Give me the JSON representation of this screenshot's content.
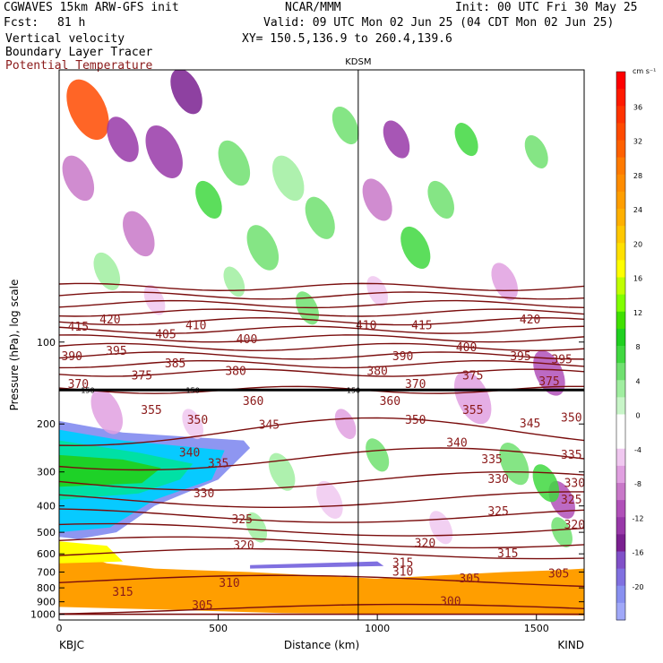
{
  "header": {
    "model": "CGWAVES 15km ARW-GFS init",
    "org": "NCAR/MMM",
    "init": "Init: 00 UTC Fri 30 May 25",
    "fcst_label": "Fcst:",
    "fcst_value": "81 h",
    "valid": "Valid: 09 UTC Mon 02 Jun 25 (04 CDT Mon 02 Jun 25)",
    "fields": [
      "Vertical velocity",
      "Boundary Layer Tracer",
      "Potential Temperature"
    ],
    "xy": "XY= 150.5,136.9 to 260.4,139.6"
  },
  "colors": {
    "theta_line": "#7a0d0d",
    "label_text": "#8b1a1a"
  },
  "chart_data": {
    "type": "heatmap",
    "station_marker": {
      "label": "KDSM",
      "x_km": 940
    },
    "endpoints": {
      "left": "KBJC",
      "right": "KIND"
    },
    "xlabel": "Distance (km)",
    "ylabel": "Pressure (hPa), log scale",
    "xlim": [
      0,
      1650
    ],
    "ylim": [
      1050,
      10
    ],
    "x_ticks": [
      "0",
      "500",
      "1000",
      "1500"
    ],
    "x_tick_values": [
      0,
      500,
      1000,
      1500
    ],
    "y_ticks": [
      "100",
      "200",
      "300",
      "400",
      "500",
      "600",
      "700",
      "800",
      "900",
      "1000"
    ],
    "y_tick_values": [
      100,
      200,
      300,
      400,
      500,
      600,
      700,
      800,
      900,
      1000
    ],
    "colorbar": {
      "unit": "cm s⁻¹",
      "labels": [
        "36",
        "32",
        "28",
        "24",
        "20",
        "16",
        "12",
        "8",
        "4",
        "0",
        "-4",
        "-8",
        "-12",
        "-16",
        "-20"
      ],
      "levels": [
        40,
        38,
        36,
        34,
        32,
        30,
        28,
        26,
        24,
        22,
        20,
        18,
        16,
        14,
        12,
        10,
        8,
        6,
        4,
        2,
        0,
        -2,
        -4,
        -6,
        -8,
        -10,
        -12,
        -14,
        -16,
        -18,
        -20,
        -22
      ],
      "colors": [
        "#ff0000",
        "#ff1a00",
        "#ff3300",
        "#ff4a00",
        "#ff6000",
        "#ff7a00",
        "#ff8c00",
        "#ff9e00",
        "#ffb000",
        "#ffc800",
        "#ffe000",
        "#ffff00",
        "#c0ff00",
        "#80ff00",
        "#40e000",
        "#20d020",
        "#40d840",
        "#70e070",
        "#a0eea0",
        "#c8f5c8",
        "#ffffff",
        "#ffffff",
        "#f0c8f0",
        "#e0a0e0",
        "#c878c8",
        "#b050b8",
        "#9838a8",
        "#7a2090",
        "#8050c8",
        "#8070e0",
        "#8890f0",
        "#a0a8f8"
      ]
    },
    "theta_levels": [
      300,
      305,
      310,
      315,
      320,
      325,
      330,
      335,
      340,
      345,
      350,
      355,
      360,
      370,
      375,
      380,
      385,
      390,
      395,
      400,
      405,
      410,
      415,
      420
    ],
    "theta_labels": [
      {
        "t": "420",
        "x": 160,
        "p": 83
      },
      {
        "t": "415",
        "x": 60,
        "p": 88
      },
      {
        "t": "410",
        "x": 430,
        "p": 87
      },
      {
        "t": "405",
        "x": 335,
        "p": 94
      },
      {
        "t": "400",
        "x": 590,
        "p": 98
      },
      {
        "t": "395",
        "x": 180,
        "p": 108
      },
      {
        "t": "390",
        "x": 40,
        "p": 113
      },
      {
        "t": "385",
        "x": 365,
        "p": 120
      },
      {
        "t": "380",
        "x": 555,
        "p": 128
      },
      {
        "t": "375",
        "x": 260,
        "p": 133
      },
      {
        "t": "370",
        "x": 60,
        "p": 143
      },
      {
        "t": "360",
        "x": 610,
        "p": 165
      },
      {
        "t": "355",
        "x": 290,
        "p": 178
      },
      {
        "t": "350",
        "x": 435,
        "p": 194
      },
      {
        "t": "345",
        "x": 660,
        "p": 202
      },
      {
        "t": "340",
        "x": 410,
        "p": 255
      },
      {
        "t": "335",
        "x": 500,
        "p": 280
      },
      {
        "t": "330",
        "x": 455,
        "p": 360
      },
      {
        "t": "325",
        "x": 575,
        "p": 450
      },
      {
        "t": "320",
        "x": 580,
        "p": 560
      },
      {
        "t": "315",
        "x": 200,
        "p": 830
      },
      {
        "t": "310",
        "x": 535,
        "p": 770
      },
      {
        "t": "305",
        "x": 450,
        "p": 930
      },
      {
        "t": "410",
        "x": 965,
        "p": 87
      },
      {
        "t": "415",
        "x": 1140,
        "p": 87
      },
      {
        "t": "420",
        "x": 1480,
        "p": 83
      },
      {
        "t": "390",
        "x": 1080,
        "p": 113
      },
      {
        "t": "400",
        "x": 1280,
        "p": 105
      },
      {
        "t": "395",
        "x": 1450,
        "p": 113
      },
      {
        "t": "380",
        "x": 1000,
        "p": 128
      },
      {
        "t": "375",
        "x": 1300,
        "p": 133
      },
      {
        "t": "370",
        "x": 1120,
        "p": 143
      },
      {
        "t": "360",
        "x": 1040,
        "p": 165
      },
      {
        "t": "355",
        "x": 1300,
        "p": 178
      },
      {
        "t": "350",
        "x": 1120,
        "p": 194
      },
      {
        "t": "345",
        "x": 1480,
        "p": 200
      },
      {
        "t": "340",
        "x": 1250,
        "p": 235
      },
      {
        "t": "335",
        "x": 1360,
        "p": 270
      },
      {
        "t": "330",
        "x": 1380,
        "p": 320
      },
      {
        "t": "325",
        "x": 1380,
        "p": 420
      },
      {
        "t": "320",
        "x": 1150,
        "p": 550
      },
      {
        "t": "315",
        "x": 1410,
        "p": 600
      },
      {
        "t": "310",
        "x": 1080,
        "p": 700
      },
      {
        "t": "305",
        "x": 1290,
        "p": 740
      },
      {
        "t": "300",
        "x": 1230,
        "p": 900
      },
      {
        "t": "305",
        "x": 1570,
        "p": 710
      },
      {
        "t": "350",
        "x": 1610,
        "p": 190
      },
      {
        "t": "335",
        "x": 1610,
        "p": 260
      },
      {
        "t": "330",
        "x": 1620,
        "p": 330
      },
      {
        "t": "325",
        "x": 1610,
        "p": 380
      },
      {
        "t": "320",
        "x": 1620,
        "p": 470
      },
      {
        "t": "395",
        "x": 1580,
        "p": 116
      },
      {
        "t": "375",
        "x": 1540,
        "p": 140
      },
      {
        "t": "315",
        "x": 1080,
        "p": 650
      }
    ],
    "tropopause_labels": [
      {
        "t": "150",
        "x": 90,
        "p": 150
      },
      {
        "t": "150",
        "x": 420,
        "p": 150
      },
      {
        "t": "150",
        "x": 925,
        "p": 150
      }
    ]
  }
}
